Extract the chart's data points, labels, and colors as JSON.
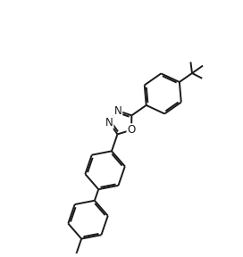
{
  "background_color": "#ffffff",
  "line_color": "#1a1a1a",
  "line_width": 1.4,
  "figsize": [
    2.72,
    2.88
  ],
  "dpi": 100,
  "xlim": [
    -1.5,
    8.5
  ],
  "ylim": [
    -1.0,
    9.5
  ]
}
